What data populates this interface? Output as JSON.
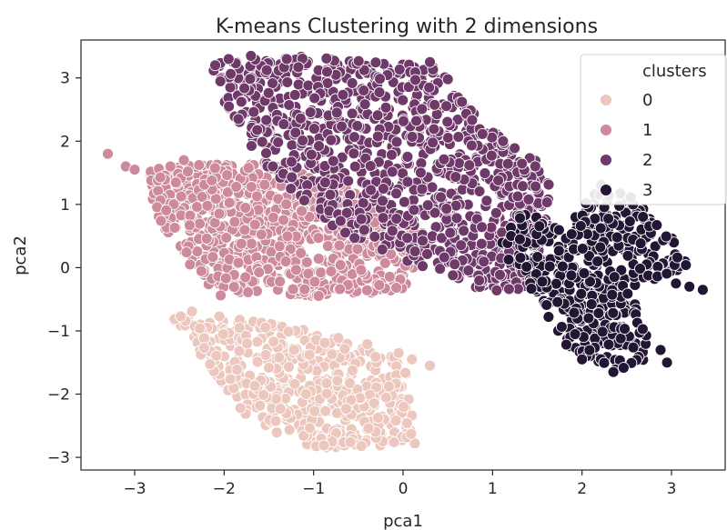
{
  "chart_data": {
    "type": "scatter",
    "title": "K-means Clustering with 2 dimensions",
    "xlabel": "pca1",
    "ylabel": "pca2",
    "xlim": [
      -3.6,
      3.6
    ],
    "ylim": [
      -3.2,
      3.6
    ],
    "xticks": [
      -3,
      -2,
      -1,
      0,
      1,
      2,
      3
    ],
    "yticks": [
      -3,
      -2,
      -1,
      0,
      1,
      2,
      3
    ],
    "xtick_labels": [
      "−3",
      "−2",
      "−1",
      "0",
      "1",
      "2",
      "3"
    ],
    "ytick_labels": [
      "−3",
      "−2",
      "−1",
      "0",
      "1",
      "2",
      "3"
    ],
    "grid": false,
    "legend": {
      "title": "clusters",
      "placement": "top-right",
      "entries": [
        {
          "label": "0",
          "color": "#ecc7bd"
        },
        {
          "label": "1",
          "color": "#cc8a9a"
        },
        {
          "label": "2",
          "color": "#6f3a6a"
        },
        {
          "label": "3",
          "color": "#221634"
        }
      ]
    },
    "series": [
      {
        "name": "0",
        "color": "#ecc7bd",
        "regions": [
          {
            "polygon": [
              [
                -2.65,
                -0.7
              ],
              [
                -2.4,
                -0.65
              ],
              [
                -1.2,
                -0.95
              ],
              [
                -0.2,
                -1.25
              ],
              [
                0.05,
                -1.4
              ],
              [
                0.05,
                -2.0
              ],
              [
                0.2,
                -2.8
              ],
              [
                -1.0,
                -2.85
              ],
              [
                -1.7,
                -2.45
              ]
            ],
            "count": 520
          }
        ],
        "points": [
          [
            0.3,
            -1.55
          ],
          [
            0.1,
            -1.45
          ],
          [
            -0.05,
            -1.35
          ]
        ]
      },
      {
        "name": "1",
        "color": "#cc8a9a",
        "regions": [
          {
            "polygon": [
              [
                -2.9,
                1.55
              ],
              [
                -2.1,
                1.65
              ],
              [
                -1.6,
                1.7
              ],
              [
                -0.2,
                1.1
              ],
              [
                0.3,
                0.5
              ],
              [
                0.0,
                -0.35
              ],
              [
                -0.6,
                -0.45
              ],
              [
                -2.15,
                -0.45
              ],
              [
                -2.75,
                0.8
              ]
            ],
            "count": 760
          }
        ],
        "points": [
          [
            -3.3,
            1.8
          ],
          [
            -3.1,
            1.6
          ],
          [
            -3.0,
            1.55
          ],
          [
            -2.45,
            1.7
          ],
          [
            -2.6,
            1.6
          ]
        ]
      },
      {
        "name": "2",
        "color": "#6f3a6a",
        "regions": [
          {
            "polygon": [
              [
                -2.15,
                3.25
              ],
              [
                -1.2,
                3.35
              ],
              [
                0.4,
                3.2
              ],
              [
                0.7,
                2.6
              ],
              [
                1.0,
                2.2
              ],
              [
                1.6,
                1.6
              ],
              [
                1.7,
                0.6
              ],
              [
                1.4,
                -0.4
              ],
              [
                0.85,
                -0.35
              ],
              [
                0.05,
                0.1
              ],
              [
                -0.7,
                0.55
              ],
              [
                -1.55,
                1.6
              ],
              [
                -2.0,
                2.6
              ]
            ],
            "count": 1000
          }
        ],
        "points": [
          [
            -2.1,
            3.2
          ],
          [
            -1.95,
            3.3
          ],
          [
            -1.7,
            3.35
          ],
          [
            -1.3,
            3.3
          ],
          [
            0.3,
            3.25
          ]
        ]
      },
      {
        "name": "3",
        "color": "#221634",
        "regions": [
          {
            "polygon": [
              [
                1.35,
                0.95
              ],
              [
                1.8,
                0.55
              ],
              [
                2.2,
                1.35
              ],
              [
                2.6,
                1.1
              ],
              [
                3.0,
                0.5
              ],
              [
                3.2,
                0.0
              ],
              [
                2.5,
                -0.35
              ],
              [
                2.9,
                -1.35
              ],
              [
                2.4,
                -1.65
              ],
              [
                1.8,
                -1.25
              ],
              [
                1.5,
                -0.45
              ],
              [
                1.05,
                0.3
              ]
            ],
            "count": 460
          }
        ],
        "points": [
          [
            3.2,
            -0.3
          ],
          [
            3.35,
            -0.35
          ],
          [
            3.05,
            -0.25
          ],
          [
            2.95,
            -1.5
          ],
          [
            2.35,
            -1.65
          ],
          [
            2.0,
            -1.45
          ]
        ]
      }
    ]
  }
}
